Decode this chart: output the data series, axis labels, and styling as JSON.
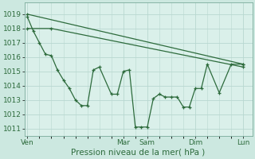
{
  "background_color": "#cce8e0",
  "plot_bg_color": "#daf0ea",
  "grid_color": "#b8d8d0",
  "line_color": "#2d6b3c",
  "ylabel_ticks": [
    1011,
    1012,
    1013,
    1014,
    1015,
    1016,
    1017,
    1018,
    1019
  ],
  "ylim": [
    1010.5,
    1019.8
  ],
  "xlabel": "Pression niveau de la mer( hPa )",
  "xlabel_fontsize": 7.5,
  "tick_fontsize": 6.5,
  "x_day_positions": [
    0,
    16,
    20,
    28,
    36
  ],
  "x_day_labels": [
    "Ven",
    "Mar",
    "Sam",
    "Dim",
    "Lun"
  ],
  "xlim": [
    -0.5,
    37.5
  ],
  "series1_x": [
    0,
    36
  ],
  "series1_y": [
    1019.0,
    1015.5
  ],
  "series2_x": [
    0,
    4,
    36
  ],
  "series2_y": [
    1018.0,
    1018.0,
    1015.3
  ],
  "series3_x": [
    0,
    1,
    2,
    3,
    4,
    5,
    6,
    7,
    8,
    9,
    10,
    11,
    12,
    14,
    15,
    16,
    17,
    18,
    19,
    20,
    21,
    22,
    23,
    24,
    25,
    26,
    27,
    28,
    29,
    30,
    32,
    34,
    36
  ],
  "series3_y": [
    1018.8,
    1017.8,
    1017.0,
    1016.2,
    1016.1,
    1015.1,
    1014.4,
    1013.8,
    1013.0,
    1012.6,
    1012.6,
    1015.1,
    1015.3,
    1013.4,
    1013.4,
    1015.0,
    1015.1,
    1011.1,
    1011.1,
    1011.1,
    1013.1,
    1013.4,
    1013.2,
    1013.2,
    1013.2,
    1012.5,
    1012.5,
    1013.8,
    1013.8,
    1015.5,
    1013.5,
    1015.5,
    1015.5
  ]
}
